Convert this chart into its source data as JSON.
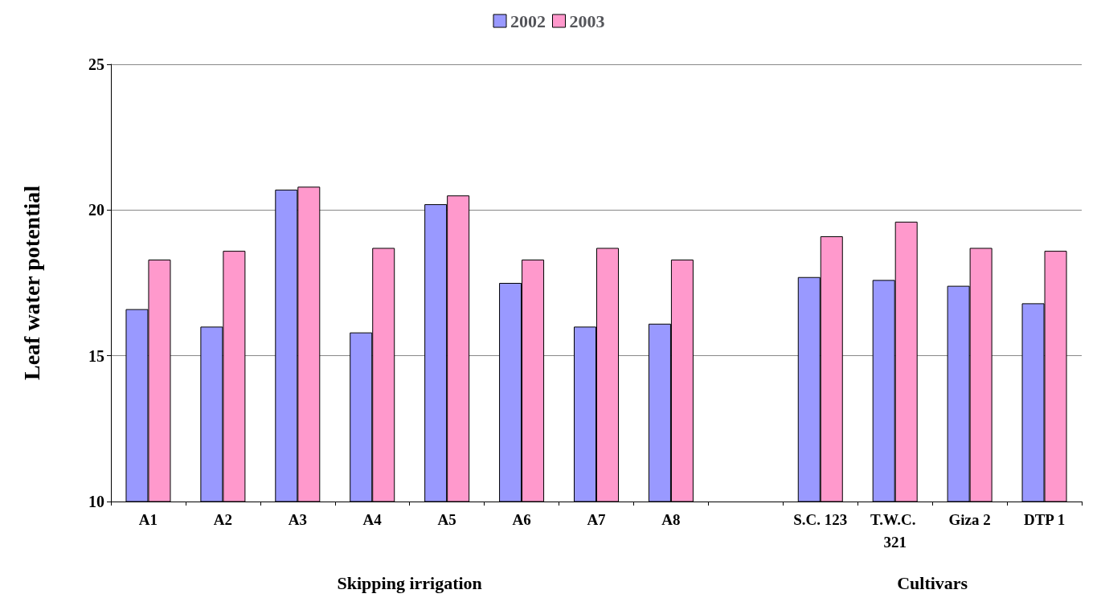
{
  "chart_data": {
    "type": "bar",
    "categories": [
      "A1",
      "A2",
      "A3",
      "A4",
      "A5",
      "A6",
      "A7",
      "A8",
      null,
      "S.C. 123",
      "T.W.C. 321",
      "Giza 2",
      "DTP 1"
    ],
    "series": [
      {
        "name": "2002",
        "color": "#9999ff",
        "values": [
          16.6,
          16.0,
          20.7,
          15.8,
          20.2,
          17.5,
          16.0,
          16.1,
          null,
          17.7,
          17.6,
          17.4,
          16.8
        ]
      },
      {
        "name": "2003",
        "color": "#ff99cc",
        "values": [
          18.3,
          18.6,
          20.8,
          18.7,
          20.5,
          18.3,
          18.7,
          18.3,
          null,
          19.1,
          19.6,
          18.7,
          18.6
        ]
      }
    ],
    "ylabel": "Leaf water potential",
    "ylim": [
      10,
      25
    ],
    "yticks": [
      10,
      15,
      20,
      25
    ],
    "annotations": [
      "Skipping irrigation",
      "Cultivars"
    ],
    "grid": "y",
    "legend": "top"
  }
}
